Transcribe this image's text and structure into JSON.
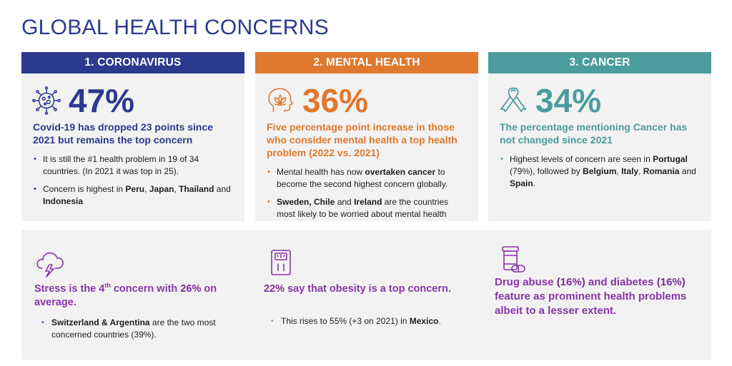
{
  "title": "GLOBAL HEALTH CONCERNS",
  "colors": {
    "title": "#2b3a8f",
    "coronavirus": "#2b3a8f",
    "mental_health": "#e0782d",
    "cancer": "#4a9d9c",
    "bottom_accent": "#8a35a8",
    "panel_bg": "#f2f2f2"
  },
  "cards": [
    {
      "header": "1. CORONAVIRUS",
      "icon": "virus-icon",
      "stat": "47%",
      "lead": "Covid-19 has dropped 23 points since 2021 but remains the top concern",
      "bullets": [
        {
          "parts": [
            {
              "t": "It is still the #1 health problem in 19 of 34 countries. (In 2021 it was top in 25).",
              "b": false
            }
          ]
        },
        {
          "parts": [
            {
              "t": "Concern is highest in ",
              "b": false
            },
            {
              "t": "Peru",
              "b": true
            },
            {
              "t": ", ",
              "b": false
            },
            {
              "t": "Japan",
              "b": true
            },
            {
              "t": ", ",
              "b": false
            },
            {
              "t": "Thailand",
              "b": true
            },
            {
              "t": " and ",
              "b": false
            },
            {
              "t": "Indonesia",
              "b": true
            }
          ]
        }
      ]
    },
    {
      "header": "2. MENTAL HEALTH",
      "icon": "mind-lotus-icon",
      "stat": "36%",
      "lead": "Five percentage point increase in those who consider mental health a top health problem (2022 vs. 2021)",
      "bullets": [
        {
          "parts": [
            {
              "t": "Mental health has now ",
              "b": false
            },
            {
              "t": "overtaken cancer",
              "b": true
            },
            {
              "t": " to become the second highest concern globally.",
              "b": false
            }
          ]
        },
        {
          "parts": [
            {
              "t": "Sweden, Chile",
              "b": true
            },
            {
              "t": " and ",
              "b": false
            },
            {
              "t": "Ireland",
              "b": true
            },
            {
              "t": " are the countries most likely to be worried about mental health",
              "b": false
            }
          ]
        }
      ]
    },
    {
      "header": "3. CANCER",
      "icon": "awareness-ribbon-icon",
      "stat": "34%",
      "lead": "The percentage mentioning Cancer has not changed since 2021",
      "bullets": [
        {
          "parts": [
            {
              "t": "Highest levels of concern are seen in ",
              "b": false
            },
            {
              "t": "Portugal",
              "b": true
            },
            {
              "t": " (79%), followed by ",
              "b": false
            },
            {
              "t": "Belgium",
              "b": true
            },
            {
              "t": ", ",
              "b": false
            },
            {
              "t": "Italy",
              "b": true
            },
            {
              "t": ", ",
              "b": false
            },
            {
              "t": "Romania",
              "b": true
            },
            {
              "t": " and ",
              "b": false
            },
            {
              "t": "Spain",
              "b": true
            },
            {
              "t": ".",
              "b": false
            }
          ]
        }
      ]
    }
  ],
  "bottom": [
    {
      "icon": "storm-cloud-icon",
      "lead_a": "Stress is the 4",
      "lead_sup": "th",
      "lead_b": " concern with ",
      "lead_c": "26%",
      "lead_d": " on average.",
      "bullets": [
        {
          "parts": [
            {
              "t": "Switzerland & Argentina",
              "b": true
            },
            {
              "t": " are the two most concerned countries (39%).",
              "b": false
            }
          ]
        }
      ]
    },
    {
      "icon": "weighing-scale-icon",
      "lead_a": "22%",
      "lead_b": " say that obesity is a top concern.",
      "bullets": [
        {
          "parts": [
            {
              "t": "This rises to 55% (+3 on 2021) in ",
              "b": false
            },
            {
              "t": "Mexico",
              "b": true
            },
            {
              "t": ".",
              "b": false
            }
          ]
        }
      ]
    },
    {
      "icon": "pills-bottle-icon",
      "lead_a": "Drug abuse ",
      "lead_b": "(16%)",
      "lead_c": " and diabetes ",
      "lead_d": "(16%)",
      "lead_e": " feature as prominent health problems albeit to a lesser extent."
    }
  ]
}
